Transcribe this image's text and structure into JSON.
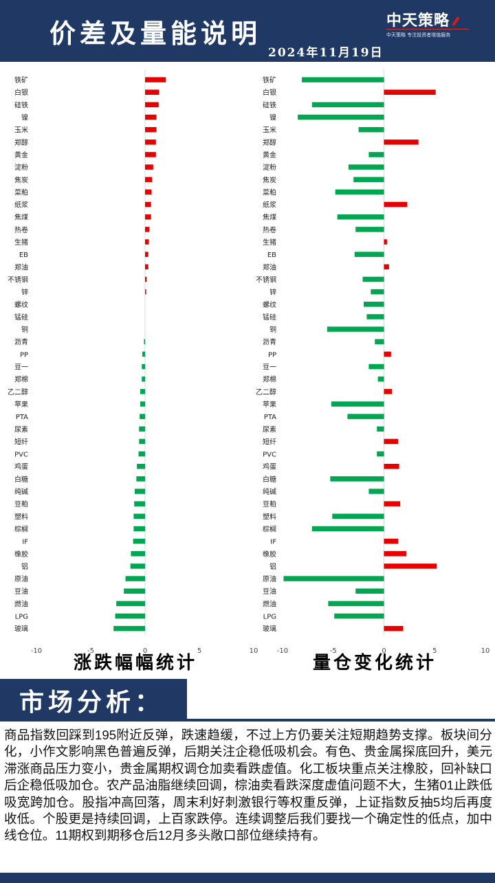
{
  "header": {
    "title": "价差及量能说明",
    "date": "2024年11月19日",
    "brand_name": "中天策略",
    "brand_tagline": "中天策略   专注投资者增值服务"
  },
  "charts_caption": {
    "left": "涨跌幅幅统计",
    "right": "量仓变化统计"
  },
  "chart_data": [
    {
      "type": "bar",
      "orientation": "horizontal",
      "caption": "涨跌幅幅统计",
      "xlim": [
        -10,
        10
      ],
      "xticks": [
        -10,
        -5,
        0,
        5,
        10
      ],
      "grid": false,
      "positive_color": "#e60000",
      "negative_color": "#00a651",
      "categories": [
        "铁矿",
        "白银",
        "硅铁",
        "镍",
        "玉米",
        "郑醇",
        "黄金",
        "淀粉",
        "焦炭",
        "菜粕",
        "纸浆",
        "焦煤",
        "热卷",
        "生猪",
        "EB",
        "郑油",
        "不锈钢",
        "锌",
        "螺纹",
        "锰硅",
        "铜",
        "沥青",
        "PP",
        "豆一",
        "郑棉",
        "乙二醇",
        "苹果",
        "PTA",
        "尿素",
        "短纤",
        "PVC",
        "鸡蛋",
        "白糖",
        "纯碱",
        "豆粕",
        "塑料",
        "棕榈",
        "IF",
        "橡胶",
        "铝",
        "原油",
        "豆油",
        "燃油",
        "LPG",
        "玻璃"
      ],
      "values": [
        1.9,
        1.3,
        1.25,
        1.05,
        1.05,
        1.0,
        1.0,
        0.75,
        0.65,
        0.6,
        0.55,
        0.55,
        0.4,
        0.35,
        0.3,
        0.3,
        0.15,
        0.1,
        0,
        0,
        0,
        -0.1,
        -0.25,
        -0.3,
        -0.3,
        -0.45,
        -0.45,
        -0.5,
        -0.55,
        -0.55,
        -0.6,
        -0.75,
        -0.8,
        -0.95,
        -1.0,
        -1.05,
        -1.05,
        -1.1,
        -1.3,
        -1.35,
        -1.8,
        -1.95,
        -2.65,
        -2.75,
        -2.9
      ]
    },
    {
      "type": "bar",
      "orientation": "horizontal",
      "caption": "量仓变化统计",
      "xlim": [
        -10,
        10
      ],
      "xticks": [
        -10,
        -5,
        0,
        5,
        10
      ],
      "grid": false,
      "positive_color": "#e60000",
      "negative_color": "#00a651",
      "categories": [
        "铁矿",
        "白银",
        "硅铁",
        "镍",
        "玉米",
        "郑醇",
        "黄金",
        "淀粉",
        "焦炭",
        "菜粕",
        "纸浆",
        "焦煤",
        "热卷",
        "生猪",
        "EB",
        "郑油",
        "不锈钢",
        "锌",
        "螺纹",
        "锰硅",
        "铜",
        "沥青",
        "PP",
        "豆一",
        "郑棉",
        "乙二醇",
        "苹果",
        "PTA",
        "尿素",
        "短纤",
        "PVC",
        "鸡蛋",
        "白糖",
        "纯碱",
        "豆粕",
        "塑料",
        "棕榈",
        "IF",
        "橡胶",
        "铝",
        "原油",
        "豆油",
        "燃油",
        "LPG",
        "玻璃"
      ],
      "values": [
        -8.1,
        5.1,
        -7.1,
        -8.5,
        -2.5,
        3.4,
        -1.5,
        -3.5,
        -3.0,
        -4.8,
        2.3,
        -4.6,
        -2.8,
        0.3,
        -2.9,
        0.5,
        -2.1,
        -1.3,
        -2.0,
        -1.7,
        -5.6,
        -0.9,
        0.7,
        -1.5,
        -0.6,
        0.8,
        -5.2,
        -3.6,
        -0.7,
        1.4,
        -0.7,
        1.5,
        -5.3,
        -1.5,
        1.6,
        -5.1,
        -7.1,
        1.4,
        2.2,
        5.2,
        -9.9,
        -2.8,
        -5.5,
        -4.9,
        1.9
      ]
    }
  ],
  "analysis": {
    "title": "市场分析：",
    "text": "商品指数回踩到195附近反弹，跌速趋缓，不过上方仍要关注短期趋势支撑。板块间分化，小作文影响黑色普遍反弹，后期关注企稳低吸机会。有色、贵金属探底回升，美元滞涨商品压力变小，贵金属期权调仓加卖看跌虚值。化工板块重点关注橡胶，回补缺口后企稳低吸加仓。农产品油脂继续回调，棕油卖看跌深度虚值问题不大，生猪01止跌低吸宽跨加仓。股指冲高回落，周末利好刺激银行等权重反弹，上证指数反抽5均后再度收低。个股更是持续回调，上百家跌停。连续调整后我们要找一个确定性的低点，加中线仓位。11期权到期移仓后12月多头敞口部位继续持有。"
  }
}
